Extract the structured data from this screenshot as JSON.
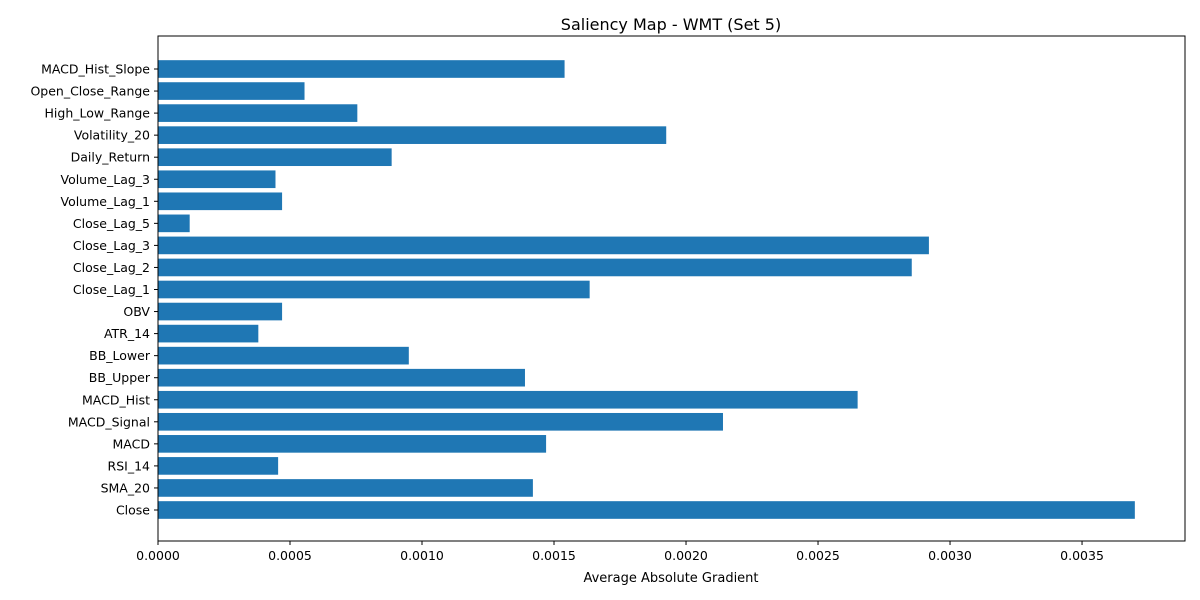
{
  "chart_data": {
    "type": "bar",
    "orientation": "horizontal",
    "title": "Saliency Map - WMT (Set 5)",
    "xlabel": "Average Absolute Gradient",
    "ylabel": "",
    "xlim": [
      0,
      0.00389
    ],
    "xticks": [
      0,
      0.0005,
      0.001,
      0.0015,
      0.002,
      0.0025,
      0.003,
      0.0035
    ],
    "xtick_labels": [
      "0.0000",
      "0.0005",
      "0.0010",
      "0.0015",
      "0.0020",
      "0.0025",
      "0.0030",
      "0.0035"
    ],
    "grid": false,
    "bar_color": "#1f77b4",
    "categories": [
      "Close",
      "SMA_20",
      "RSI_14",
      "MACD",
      "MACD_Signal",
      "MACD_Hist",
      "BB_Upper",
      "BB_Lower",
      "ATR_14",
      "OBV",
      "Close_Lag_1",
      "Close_Lag_2",
      "Close_Lag_3",
      "Close_Lag_5",
      "Volume_Lag_1",
      "Volume_Lag_3",
      "Daily_Return",
      "Volatility_20",
      "High_Low_Range",
      "Open_Close_Range",
      "MACD_Hist_Slope"
    ],
    "values": [
      0.0037,
      0.00142,
      0.000455,
      0.00147,
      0.00214,
      0.00265,
      0.00139,
      0.00095,
      0.00038,
      0.00047,
      0.001635,
      0.002855,
      0.00292,
      0.00012,
      0.00047,
      0.000445,
      0.000885,
      0.001925,
      0.000755,
      0.000555,
      0.00154
    ]
  }
}
